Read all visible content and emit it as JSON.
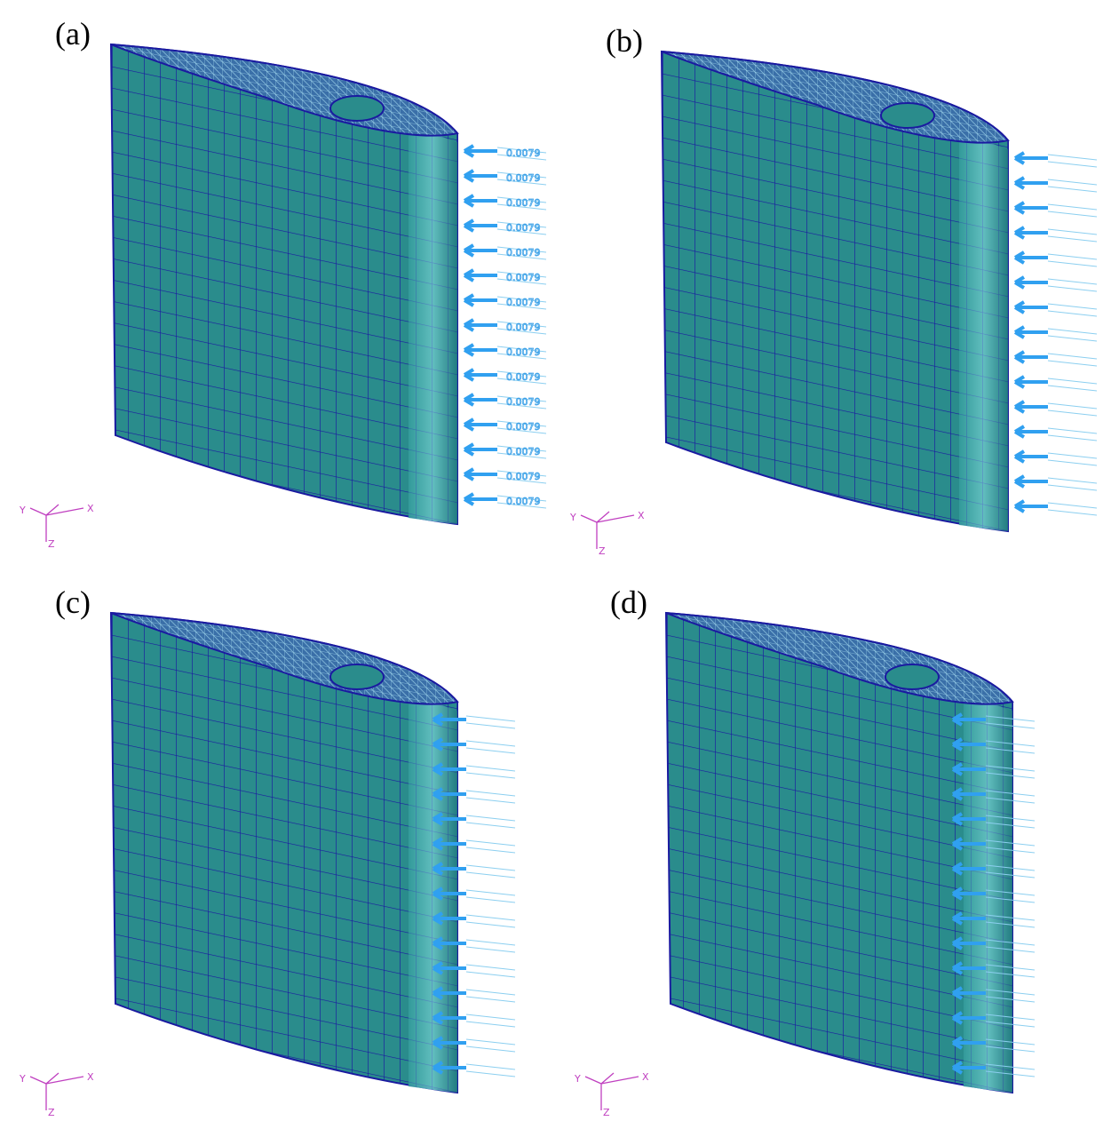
{
  "panels": [
    {
      "label": "(a)",
      "axes": {
        "x": "X",
        "y": "Y",
        "z": "Z"
      },
      "load_labels": [
        "0.0079",
        "0.0079",
        "0.0079",
        "0.0079",
        "0.0079",
        "0.0079",
        "0.0079",
        "0.0079",
        "0.0079",
        "0.0079",
        "0.0079",
        "0.0079",
        "0.0079",
        "0.0079",
        "0.0079"
      ]
    },
    {
      "label": "(b)",
      "axes": {
        "x": "X",
        "y": "Y",
        "z": "Z"
      }
    },
    {
      "label": "(c)",
      "axes": {
        "x": "X",
        "y": "Y",
        "z": "Z"
      }
    },
    {
      "label": "(d)",
      "axes": {
        "x": "X",
        "y": "Y",
        "z": "Z"
      }
    }
  ]
}
